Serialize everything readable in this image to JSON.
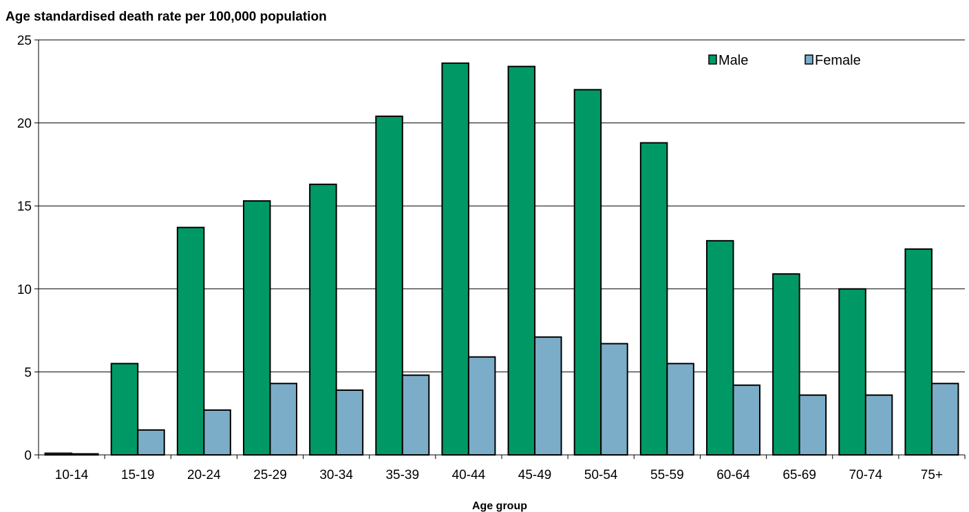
{
  "chart_data": {
    "type": "bar",
    "title": "Age standardised death rate per 100,000 population",
    "xlabel": "Age group",
    "ylabel": "",
    "ylim": [
      0,
      25
    ],
    "yticks": [
      0,
      5,
      10,
      15,
      20,
      25
    ],
    "grid": true,
    "legend_position": "top-right",
    "categories": [
      "10-14",
      "15-19",
      "20-24",
      "25-29",
      "30-34",
      "35-39",
      "40-44",
      "45-49",
      "50-54",
      "55-59",
      "60-64",
      "65-69",
      "70-74",
      "75+"
    ],
    "series": [
      {
        "name": "Male",
        "color": "#009966",
        "values": [
          0.1,
          5.5,
          13.7,
          15.3,
          16.3,
          20.4,
          23.6,
          23.4,
          22.0,
          18.8,
          12.9,
          10.9,
          10.0,
          12.4
        ]
      },
      {
        "name": "Female",
        "color": "#7BADC8",
        "values": [
          0.05,
          1.5,
          2.7,
          4.3,
          3.9,
          4.8,
          5.9,
          7.1,
          6.7,
          5.5,
          4.2,
          3.6,
          3.6,
          4.3
        ]
      }
    ]
  }
}
